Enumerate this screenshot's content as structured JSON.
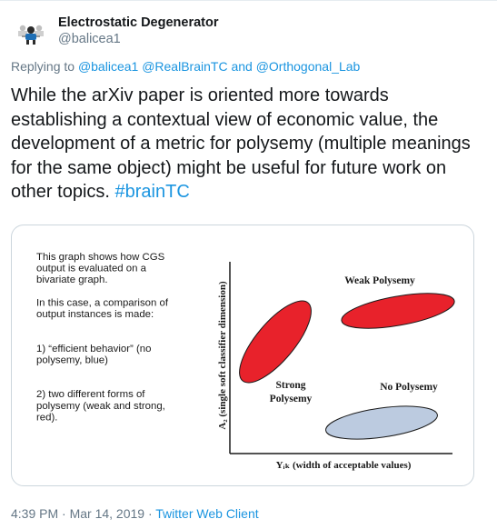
{
  "tweet": {
    "display_name": "Electrostatic Degenerator",
    "handle": "@balicea1",
    "replying_prefix": "Replying to",
    "reply_mentions": [
      "@balicea1",
      "@RealBrainTC",
      "and",
      "@Orthogonal_Lab"
    ],
    "text_body": "While the arXiv paper is oriented more towards establishing a contextual view of economic value, the development of a metric for polysemy (multiple meanings for the same object) might be useful for future work on other topics.",
    "hashtag": "#brainTC",
    "timestamp": "4:39 PM · Mar 14, 2019",
    "separator": "·",
    "client": "Twitter Web Client"
  },
  "media": {
    "notes": [
      "This graph shows how CGS",
      "output is evaluated on a",
      "bivariate graph.",
      "",
      "In this case, a comparison of",
      "output instances is made:",
      "",
      "",
      "1) “efficient behavior” (no",
      "polysemy, blue)",
      "",
      "",
      "2) two different forms of",
      "polysemy (weak and strong,",
      "red)."
    ],
    "y_axis_label": "A₂ (single soft classifier dimension)",
    "x_axis_label": "Yᵢₖ (width of acceptable values)",
    "label_weak": "Weak Polysemy",
    "label_strong_1": "Strong",
    "label_strong_2": "Polysemy",
    "label_none": "No Polysemy",
    "colors": {
      "red": "#e8222b",
      "blue": "#bccbe0",
      "outline": "#1a1a1a"
    }
  }
}
